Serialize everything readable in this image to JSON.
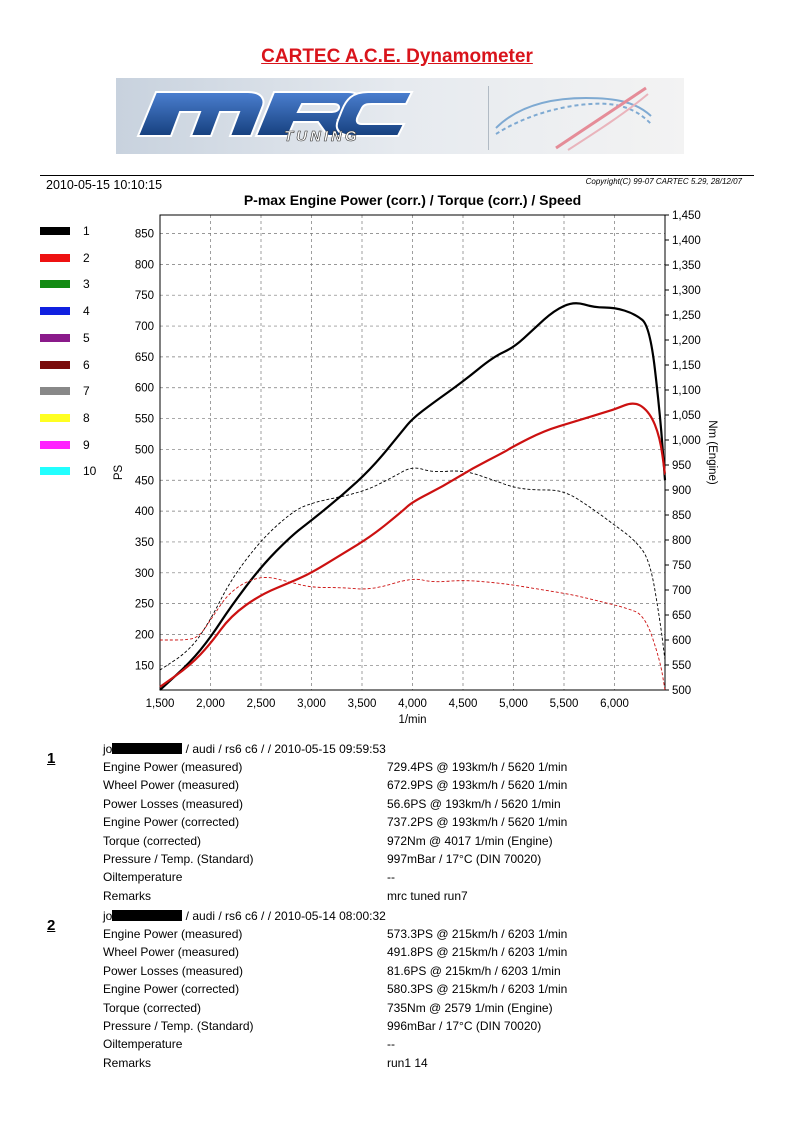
{
  "header": {
    "title": "CARTEC A.C.E. Dynamometer",
    "banner_logo": "MRC TUNING",
    "timestamp": "2010-05-15 10:10:15",
    "copyright": "Copyright(C) 99-07 CARTEC 5.29, 28/12/07"
  },
  "legend": {
    "items": [
      {
        "label": "1",
        "color": "#000000"
      },
      {
        "label": "2",
        "color": "#ee1111"
      },
      {
        "label": "3",
        "color": "#138a13"
      },
      {
        "label": "4",
        "color": "#1020e0"
      },
      {
        "label": "5",
        "color": "#8a1a8a"
      },
      {
        "label": "6",
        "color": "#7a0a0a"
      },
      {
        "label": "7",
        "color": "#888888"
      },
      {
        "label": "8",
        "color": "#ffff22"
      },
      {
        "label": "9",
        "color": "#ff22ff"
      },
      {
        "label": "10",
        "color": "#22ffff"
      }
    ]
  },
  "chart_data": {
    "type": "line",
    "title": "P-max Engine Power (corr.) / Torque (corr.) / Speed",
    "xlabel": "1/min",
    "ylabel": "PS",
    "y2label": "Nm (Engine)",
    "xlim": [
      1500,
      6500
    ],
    "ylim": [
      110,
      880
    ],
    "y2lim": [
      500,
      1450
    ],
    "x_ticks": [
      "1,500",
      "2,000",
      "2,500",
      "3,000",
      "3,500",
      "4,000",
      "4,500",
      "5,000",
      "5,500",
      "6,000"
    ],
    "x_tick_values": [
      1500,
      2000,
      2500,
      3000,
      3500,
      4000,
      4500,
      5000,
      5500,
      6000
    ],
    "y_ticks": [
      "150",
      "200",
      "250",
      "300",
      "350",
      "400",
      "450",
      "500",
      "550",
      "600",
      "650",
      "700",
      "750",
      "800",
      "850"
    ],
    "y_tick_values": [
      150,
      200,
      250,
      300,
      350,
      400,
      450,
      500,
      550,
      600,
      650,
      700,
      750,
      800,
      850
    ],
    "y2_ticks": [
      "500",
      "550",
      "600",
      "650",
      "700",
      "750",
      "800",
      "850",
      "900",
      "950",
      "1,000",
      "1,050",
      "1,100",
      "1,150",
      "1,200",
      "1,250",
      "1,300",
      "1,350",
      "1,400",
      "1,450"
    ],
    "y2_tick_values": [
      500,
      550,
      600,
      650,
      700,
      750,
      800,
      850,
      900,
      950,
      1000,
      1050,
      1100,
      1150,
      1200,
      1250,
      1300,
      1350,
      1400,
      1450
    ],
    "grid": true,
    "series": [
      {
        "name": "1",
        "color": "#000000",
        "axis": "left",
        "style": "solid",
        "x": [
          1500,
          1800,
          2000,
          2200,
          2500,
          2800,
          3000,
          3300,
          3600,
          3900,
          4000,
          4200,
          4500,
          4800,
          5000,
          5200,
          5400,
          5600,
          5800,
          6000,
          6200,
          6350,
          6450,
          6500
        ],
        "y": [
          110,
          155,
          195,
          245,
          310,
          360,
          385,
          425,
          470,
          530,
          550,
          575,
          610,
          650,
          665,
          695,
          725,
          740,
          730,
          730,
          720,
          700,
          560,
          450
        ]
      },
      {
        "name": "1",
        "color": "#000000",
        "axis": "right",
        "style": "dashed",
        "x": [
          1500,
          1800,
          2000,
          2200,
          2500,
          2800,
          3000,
          3500,
          3800,
          4000,
          4200,
          4500,
          4800,
          5000,
          5200,
          5500,
          5800,
          6000,
          6200,
          6350,
          6450,
          6500
        ],
        "y": [
          540,
          580,
          640,
          720,
          800,
          855,
          875,
          895,
          925,
          948,
          935,
          940,
          920,
          905,
          900,
          900,
          860,
          830,
          800,
          760,
          640,
          560
        ]
      },
      {
        "name": "2",
        "color": "#cc1111",
        "axis": "left",
        "style": "solid",
        "x": [
          1500,
          1800,
          2000,
          2200,
          2500,
          2800,
          3000,
          3300,
          3600,
          3900,
          4000,
          4300,
          4600,
          4900,
          5000,
          5300,
          5600,
          5900,
          6000,
          6200,
          6350,
          6450,
          6500
        ],
        "y": [
          115,
          150,
          185,
          230,
          265,
          285,
          300,
          330,
          360,
          400,
          415,
          440,
          470,
          495,
          505,
          530,
          545,
          560,
          565,
          578,
          560,
          520,
          460
        ]
      },
      {
        "name": "2",
        "color": "#cc1111",
        "axis": "right",
        "style": "dashed",
        "x": [
          1500,
          1800,
          1900,
          2000,
          2200,
          2500,
          2800,
          3000,
          3300,
          3600,
          4000,
          4200,
          4500,
          4800,
          5000,
          5300,
          5600,
          5900,
          6100,
          6300,
          6450,
          6500
        ],
        "y": [
          600,
          600,
          610,
          640,
          700,
          730,
          715,
          705,
          705,
          700,
          725,
          715,
          720,
          715,
          710,
          700,
          690,
          675,
          665,
          650,
          560,
          500
        ]
      }
    ]
  },
  "runs": [
    {
      "number": "1",
      "header_prefix": "jo",
      "header_suffix": "/ audi / rs6  c6  /  / 2010-05-15 09:59:53",
      "rows": [
        {
          "label": "Engine Power (measured)",
          "value": "729.4PS @ 193km/h / 5620 1/min"
        },
        {
          "label": "Wheel Power (measured)",
          "value": "672.9PS @ 193km/h / 5620 1/min"
        },
        {
          "label": "Power Losses (measured)",
          "value": "56.6PS @ 193km/h / 5620 1/min"
        },
        {
          "label": "Engine Power (corrected)",
          "value": "737.2PS @ 193km/h / 5620 1/min"
        },
        {
          "label": "Torque (corrected)",
          "value": "972Nm @ 4017 1/min (Engine)"
        },
        {
          "label": "Pressure / Temp. (Standard)",
          "value": "997mBar / 17°C    (DIN 70020)"
        },
        {
          "label": "Oiltemperature",
          "value": "--"
        },
        {
          "label": "Remarks",
          "value": "mrc tuned run7"
        }
      ]
    },
    {
      "number": "2",
      "header_prefix": "jo",
      "header_suffix": "/ audi / rs6  c6  /  / 2010-05-14 08:00:32",
      "rows": [
        {
          "label": "Engine Power (measured)",
          "value": "573.3PS @ 215km/h / 6203 1/min"
        },
        {
          "label": "Wheel Power (measured)",
          "value": "491.8PS @ 215km/h / 6203 1/min"
        },
        {
          "label": "Power Losses (measured)",
          "value": "81.6PS @ 215km/h / 6203 1/min"
        },
        {
          "label": "Engine Power (corrected)",
          "value": "580.3PS @ 215km/h / 6203 1/min"
        },
        {
          "label": "Torque (corrected)",
          "value": "735Nm @ 2579 1/min (Engine)"
        },
        {
          "label": "Pressure / Temp. (Standard)",
          "value": "996mBar / 17°C    (DIN 70020)"
        },
        {
          "label": "Oiltemperature",
          "value": "--"
        },
        {
          "label": "Remarks",
          "value": "run1 14"
        }
      ]
    }
  ]
}
